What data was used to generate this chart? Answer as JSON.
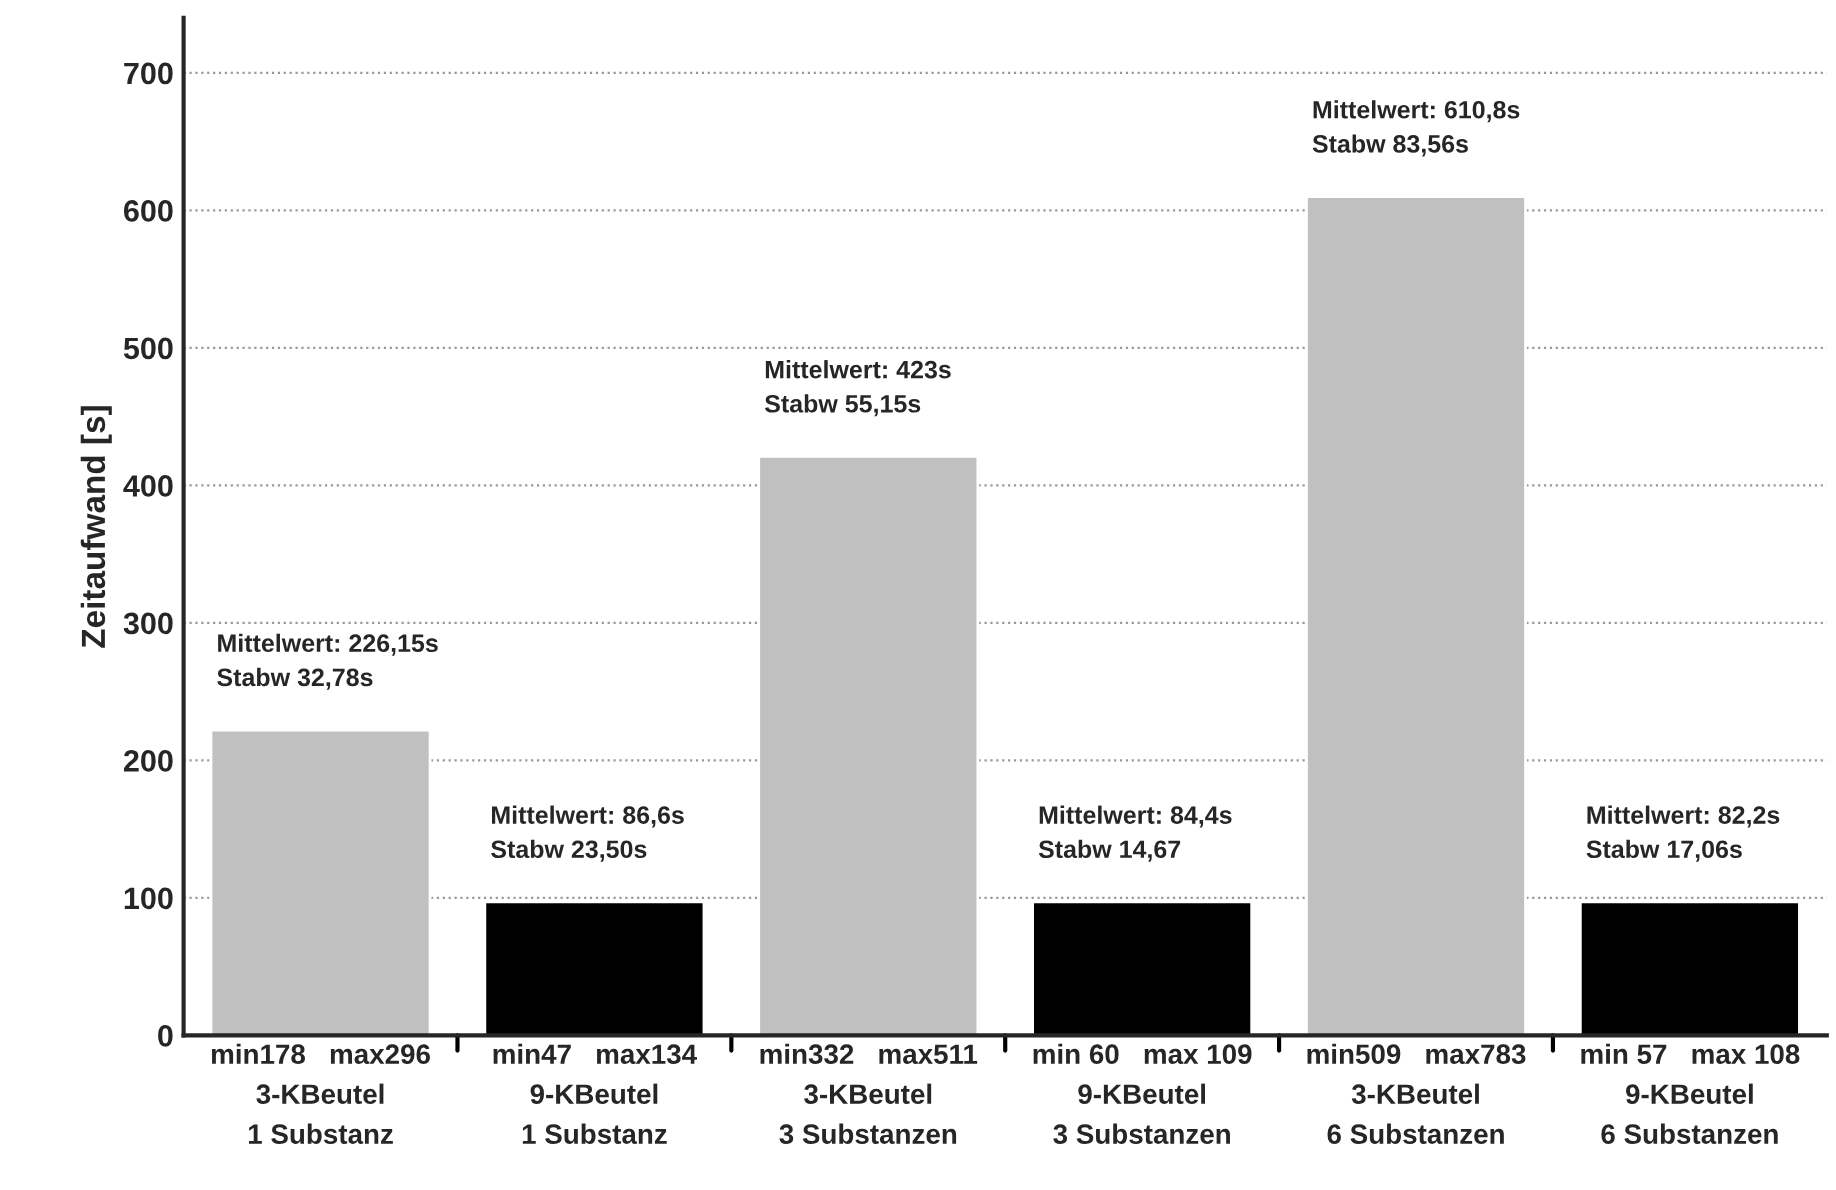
{
  "chart_data": {
    "type": "bar",
    "ylabel": "Zeitaufwand [s]",
    "categories": [
      "min178   max296\n3-KBeutel\n1 Substanz",
      "min47   max134\n9-KBeutel\n1 Substanz",
      "min332   max511\n3-KBeutel\n3 Substanzen",
      "min 60   max 109\n9-KBeutel\n3 Substanzen",
      "min509   max783\n3-KBeutel\n6 Substanzen",
      "min 57   max 108\n9-KBeutel\n6 Substanzen"
    ],
    "values": [
      222,
      97,
      421,
      97,
      610,
      97
    ],
    "colors": [
      "#c0c0c0",
      "#000000",
      "#c0c0c0",
      "#000000",
      "#c0c0c0",
      "#000000"
    ],
    "ylim": [
      0,
      740
    ],
    "yticks": [
      0,
      100,
      200,
      300,
      400,
      500,
      600,
      700
    ],
    "grid": "y",
    "annotations": [
      "Mittelwert: 226,15s\nStabw 32,78s",
      "Mittelwert: 86,6s\nStabw 23,50s",
      "Mittelwert: 423s\nStabw 55,15s",
      "Mittelwert: 84,4s\nStabw 14,67",
      "Mittelwert: 610,8s\nStabw 83,56s",
      "Mittelwert: 82,2s\nStabw 17,06s"
    ]
  }
}
